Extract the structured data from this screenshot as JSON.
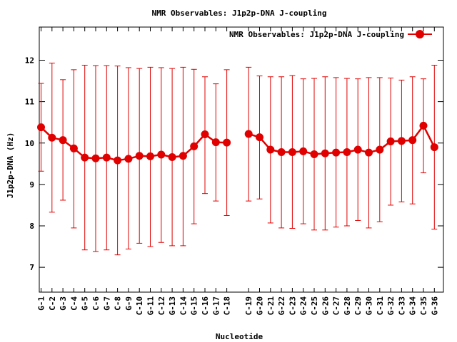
{
  "chart_data": {
    "type": "line",
    "title": "NMR Observables: J1p2p-DNA J-coupling",
    "xlabel": "Nucleotide",
    "ylabel": "J1p2p-DNA (Hz)",
    "ylim": [
      6.4,
      12.8
    ],
    "yticks": [
      7,
      8,
      9,
      10,
      11,
      12
    ],
    "grid": false,
    "legend_position": "top-right",
    "series_color": "#e00000",
    "categories": [
      "G-1",
      "C-2",
      "G-3",
      "C-4",
      "G-5",
      "C-6",
      "G-7",
      "C-8",
      "G-9",
      "C-10",
      "G-11",
      "C-12",
      "G-13",
      "C-14",
      "G-15",
      "C-16",
      "G-17",
      "C-18",
      "C-19",
      "G-20",
      "C-21",
      "G-22",
      "C-23",
      "G-24",
      "C-25",
      "G-26",
      "C-27",
      "G-28",
      "C-29",
      "G-30",
      "C-31",
      "G-32",
      "C-33",
      "G-34",
      "C-35",
      "G-36"
    ],
    "series": [
      {
        "name": "NMR Observables: J1p2p-DNA J-coupling",
        "values": [
          10.38,
          10.13,
          10.07,
          9.87,
          9.65,
          9.63,
          9.65,
          9.58,
          9.62,
          9.69,
          9.68,
          9.72,
          9.66,
          9.69,
          9.92,
          10.21,
          10.02,
          10.01,
          10.22,
          10.14,
          9.84,
          9.78,
          9.78,
          9.8,
          9.73,
          9.75,
          9.77,
          9.78,
          9.84,
          9.77,
          9.84,
          10.04,
          10.05,
          10.07,
          10.42,
          9.9
        ],
        "err_low": [
          9.32,
          8.33,
          8.62,
          7.95,
          7.42,
          7.38,
          7.42,
          7.3,
          7.44,
          7.58,
          7.5,
          7.6,
          7.52,
          7.52,
          8.05,
          8.78,
          8.6,
          8.25,
          8.6,
          8.65,
          8.07,
          7.95,
          7.94,
          8.05,
          7.9,
          7.9,
          7.97,
          8.0,
          8.13,
          7.95,
          8.1,
          8.5,
          8.58,
          8.53,
          9.28,
          7.92
        ],
        "err_high": [
          11.44,
          11.93,
          11.53,
          11.77,
          11.88,
          11.87,
          11.87,
          11.86,
          11.82,
          11.8,
          11.83,
          11.82,
          11.8,
          11.83,
          11.78,
          11.6,
          11.43,
          11.77,
          11.83,
          11.62,
          11.6,
          11.6,
          11.63,
          11.55,
          11.56,
          11.6,
          11.58,
          11.56,
          11.55,
          11.58,
          11.58,
          11.57,
          11.52,
          11.6,
          11.55,
          11.88
        ],
        "segments": [
          [
            0,
            17
          ],
          [
            18,
            35
          ]
        ]
      }
    ]
  }
}
